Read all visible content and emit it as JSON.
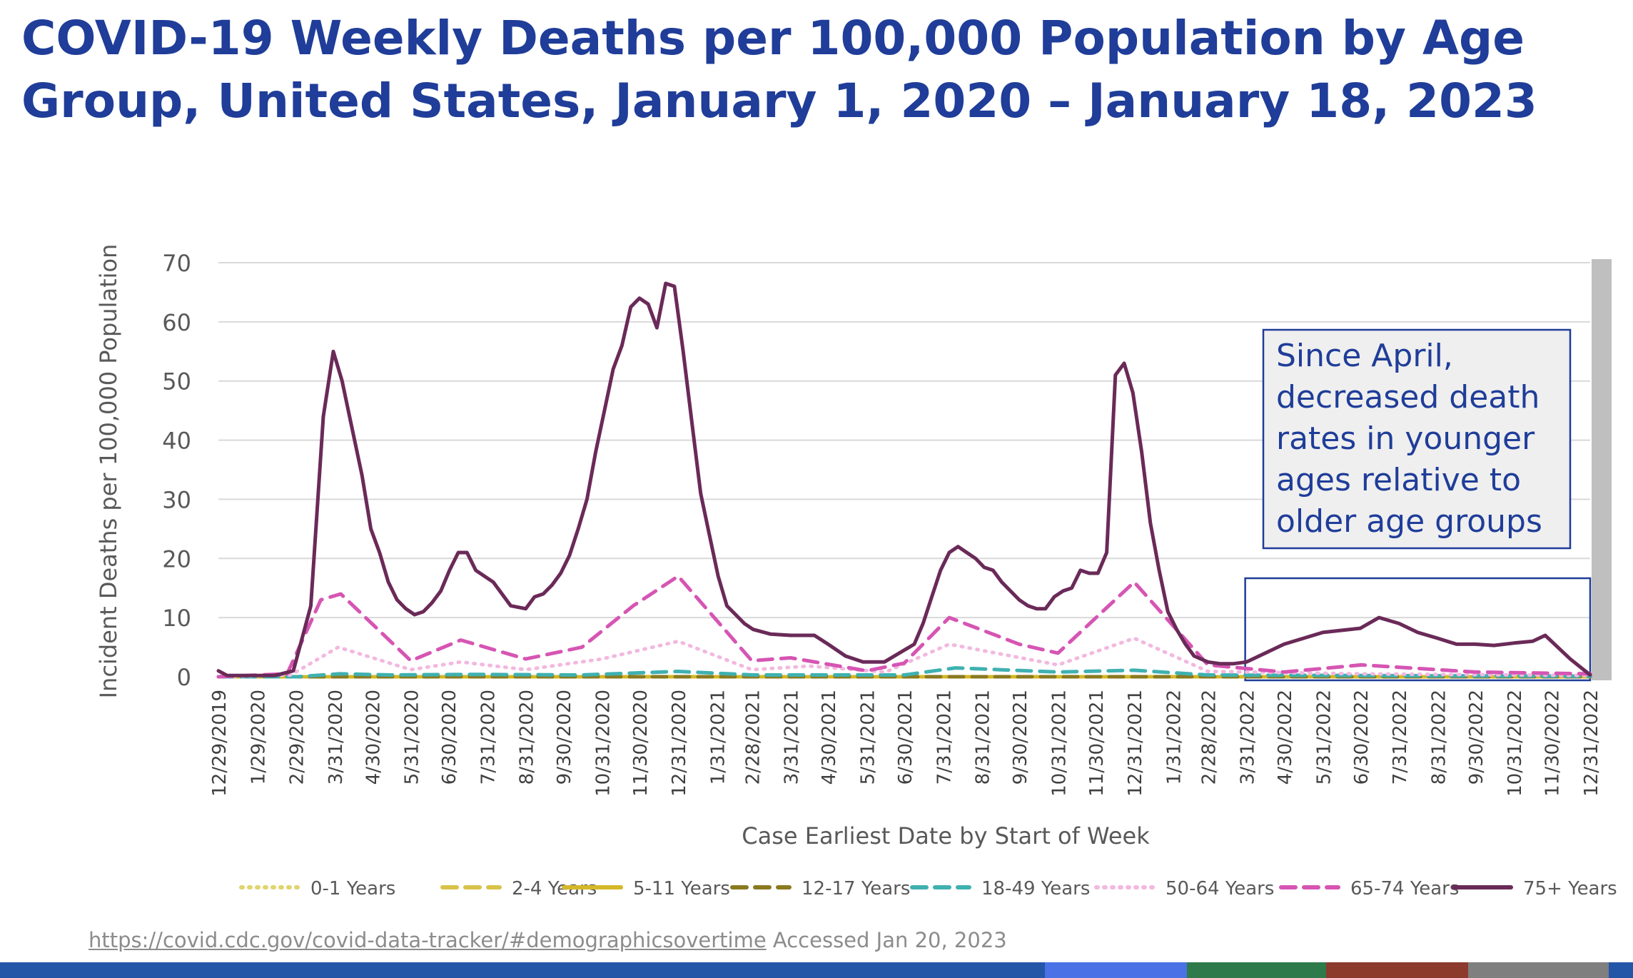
{
  "slide": {
    "title": "COVID-19 Weekly Deaths per 100,000 Population by Age Group, United States, January 1, 2020 – January 18, 2023",
    "source_url": "https://covid.cdc.gov/covid-data-tracker/#demographicsovertime",
    "source_note": "Accessed  Jan 20, 2023",
    "callout": "Since April, decreased death rates in younger ages relative to older age groups",
    "footer_colors": [
      "#2456a8",
      "#4a72e6",
      "#2e7a4a",
      "#8c3a2c",
      "#7f7f7f",
      "#2456a8"
    ]
  },
  "chart_data": {
    "type": "line",
    "title": "",
    "xlabel": "Case Earliest Date by Start of Week",
    "ylabel": "Incident Deaths per 100,000 Population",
    "ylim": [
      0,
      70
    ],
    "yticks": [
      0,
      10,
      20,
      30,
      40,
      50,
      60,
      70
    ],
    "grid": true,
    "legend_position": "bottom",
    "x_start": "2019-12-29",
    "x_end": "2022-12-31",
    "x_tick_labels": [
      "12/29/2019",
      "1/29/2020",
      "2/29/2020",
      "3/31/2020",
      "4/30/2020",
      "5/31/2020",
      "6/30/2020",
      "7/31/2020",
      "8/31/2020",
      "9/30/2020",
      "10/31/2020",
      "11/30/2020",
      "12/31/2020",
      "1/31/2021",
      "2/28/2021",
      "3/31/2021",
      "4/30/2021",
      "5/31/2021",
      "6/30/2021",
      "7/31/2021",
      "8/31/2021",
      "9/30/2021",
      "10/31/2021",
      "11/30/2021",
      "12/31/2021",
      "1/31/2022",
      "2/28/2022",
      "3/31/2022",
      "4/30/2022",
      "5/31/2022",
      "6/30/2022",
      "7/31/2022",
      "8/31/2022",
      "9/30/2022",
      "10/31/2022",
      "11/30/2022",
      "12/31/2022"
    ],
    "highlight_range": [
      "2022-03-31",
      "2022-12-31"
    ],
    "series": [
      {
        "name": "0-1 Years",
        "color": "#e0d46e",
        "dash": "dot",
        "x": [
          "2019-12-29",
          "2022-12-31"
        ],
        "y": [
          0,
          0
        ]
      },
      {
        "name": "2-4 Years",
        "color": "#d9c24a",
        "dash": "dash",
        "x": [
          "2019-12-29",
          "2022-12-31"
        ],
        "y": [
          0,
          0
        ]
      },
      {
        "name": "5-11 Years",
        "color": "#d4b828",
        "dash": "solid",
        "x": [
          "2019-12-29",
          "2022-12-31"
        ],
        "y": [
          0,
          0
        ]
      },
      {
        "name": "12-17 Years",
        "color": "#8a7a20",
        "dash": "dash",
        "x": [
          "2019-12-29",
          "2022-12-31"
        ],
        "y": [
          0,
          0
        ]
      },
      {
        "name": "18-49 Years",
        "color": "#3fb1b0",
        "dash": "dash",
        "x": [
          "2019-12-29",
          "2020-03-01",
          "2020-04-04",
          "2020-05-15",
          "2020-07-20",
          "2020-10-15",
          "2020-12-31",
          "2021-03-01",
          "2021-06-30",
          "2021-08-10",
          "2021-10-31",
          "2021-12-31",
          "2022-02-28",
          "2022-06-30",
          "2022-12-31"
        ],
        "y": [
          0,
          0,
          0.5,
          0.3,
          0.4,
          0.3,
          0.9,
          0.3,
          0.3,
          1.5,
          0.8,
          1.1,
          0.3,
          0.2,
          0.1
        ]
      },
      {
        "name": "50-64 Years",
        "color": "#f2b8e0",
        "dash": "dot",
        "x": [
          "2019-12-29",
          "2020-02-25",
          "2020-04-03",
          "2020-05-31",
          "2020-07-10",
          "2020-08-31",
          "2020-10-31",
          "2020-12-31",
          "2021-02-28",
          "2021-04-15",
          "2021-06-15",
          "2021-08-05",
          "2021-10-31",
          "2021-12-31",
          "2022-02-28",
          "2022-06-30",
          "2022-12-31"
        ],
        "y": [
          0,
          0.3,
          5,
          1.2,
          2.5,
          1.2,
          3,
          6,
          1.2,
          1.8,
          0.8,
          5.5,
          2,
          6.5,
          0.9,
          0.5,
          0.2
        ]
      },
      {
        "name": "65-74 Years",
        "color": "#d655b3",
        "dash": "dash",
        "x": [
          "2019-12-29",
          "2020-02-22",
          "2020-03-20",
          "2020-04-05",
          "2020-05-31",
          "2020-07-10",
          "2020-08-31",
          "2020-10-15",
          "2020-11-25",
          "2020-12-31",
          "2021-02-28",
          "2021-03-31",
          "2021-05-31",
          "2021-06-30",
          "2021-08-05",
          "2021-09-30",
          "2021-10-31",
          "2021-12-31",
          "2022-02-28",
          "2022-04-30",
          "2022-07-01",
          "2022-09-30",
          "2022-12-31"
        ],
        "y": [
          0,
          0.5,
          13,
          14,
          2.7,
          6.2,
          3,
          5,
          12,
          17,
          2.7,
          3.2,
          1,
          2.3,
          10,
          5.5,
          4,
          16,
          2,
          0.8,
          2,
          0.8,
          0.5
        ]
      },
      {
        "name": "75+ Years",
        "color": "#6a2a58",
        "dash": "solid",
        "x": [
          "2019-12-29",
          "2020-01-05",
          "2020-02-12",
          "2020-02-27",
          "2020-03-12",
          "2020-03-22",
          "2020-03-30",
          "2020-04-06",
          "2020-04-13",
          "2020-04-22",
          "2020-04-29",
          "2020-05-06",
          "2020-05-13",
          "2020-05-20",
          "2020-05-27",
          "2020-06-03",
          "2020-06-10",
          "2020-06-17",
          "2020-06-24",
          "2020-07-01",
          "2020-07-08",
          "2020-07-15",
          "2020-07-22",
          "2020-08-05",
          "2020-08-19",
          "2020-08-31",
          "2020-09-07",
          "2020-09-14",
          "2020-09-21",
          "2020-09-28",
          "2020-10-05",
          "2020-10-12",
          "2020-10-19",
          "2020-10-26",
          "2020-11-02",
          "2020-11-09",
          "2020-11-16",
          "2020-11-23",
          "2020-11-30",
          "2020-12-07",
          "2020-12-14",
          "2020-12-21",
          "2020-12-28",
          "2021-01-04",
          "2021-01-11",
          "2021-01-18",
          "2021-01-25",
          "2021-02-01",
          "2021-02-08",
          "2021-02-15",
          "2021-02-22",
          "2021-03-01",
          "2021-03-15",
          "2021-03-31",
          "2021-04-19",
          "2021-04-30",
          "2021-05-14",
          "2021-05-28",
          "2021-06-14",
          "2021-06-30",
          "2021-07-08",
          "2021-07-15",
          "2021-07-22",
          "2021-07-29",
          "2021-08-05",
          "2021-08-12",
          "2021-08-19",
          "2021-08-26",
          "2021-09-02",
          "2021-09-09",
          "2021-09-16",
          "2021-09-23",
          "2021-09-30",
          "2021-10-07",
          "2021-10-14",
          "2021-10-21",
          "2021-10-28",
          "2021-11-04",
          "2021-11-11",
          "2021-11-18",
          "2021-11-25",
          "2021-12-02",
          "2021-12-09",
          "2021-12-16",
          "2021-12-23",
          "2021-12-30",
          "2022-01-06",
          "2022-01-13",
          "2022-01-20",
          "2022-01-27",
          "2022-02-03",
          "2022-02-10",
          "2022-02-17",
          "2022-02-28",
          "2022-03-10",
          "2022-03-20",
          "2022-03-31",
          "2022-04-30",
          "2022-05-31",
          "2022-06-30",
          "2022-07-15",
          "2022-07-31",
          "2022-08-15",
          "2022-08-31",
          "2022-09-15",
          "2022-09-30",
          "2022-10-15",
          "2022-10-31",
          "2022-11-15",
          "2022-11-25",
          "2022-12-05",
          "2022-12-15",
          "2022-12-31"
        ],
        "y": [
          1,
          0.2,
          0.2,
          1,
          12,
          44,
          55,
          50,
          43,
          34,
          25,
          21,
          16,
          13,
          11.5,
          10.5,
          11,
          12.5,
          14.5,
          18,
          21,
          21,
          18,
          16,
          12,
          11.5,
          13.5,
          14,
          15.5,
          17.5,
          20.5,
          25,
          30,
          38,
          45,
          52,
          56,
          62.5,
          64,
          63,
          59,
          66.5,
          66,
          55,
          43,
          31,
          24,
          17,
          12,
          10.5,
          9,
          8,
          7.2,
          7,
          7,
          5.5,
          3.5,
          2.5,
          2.5,
          4.5,
          5.5,
          9,
          13.5,
          18,
          21,
          22,
          21,
          20,
          18.5,
          18,
          16,
          14.5,
          13,
          12,
          11.5,
          11.5,
          13.5,
          14.5,
          15,
          18,
          17.5,
          17.5,
          21,
          51,
          53,
          48,
          38,
          26,
          18,
          11,
          8,
          5.5,
          3.5,
          2.5,
          2.2,
          2.2,
          2.5,
          5.5,
          7.5,
          8.2,
          10,
          9,
          7.5,
          6.5,
          5.5,
          5.5,
          5.3,
          5.7,
          6,
          7,
          5,
          3,
          0.3
        ]
      }
    ]
  }
}
